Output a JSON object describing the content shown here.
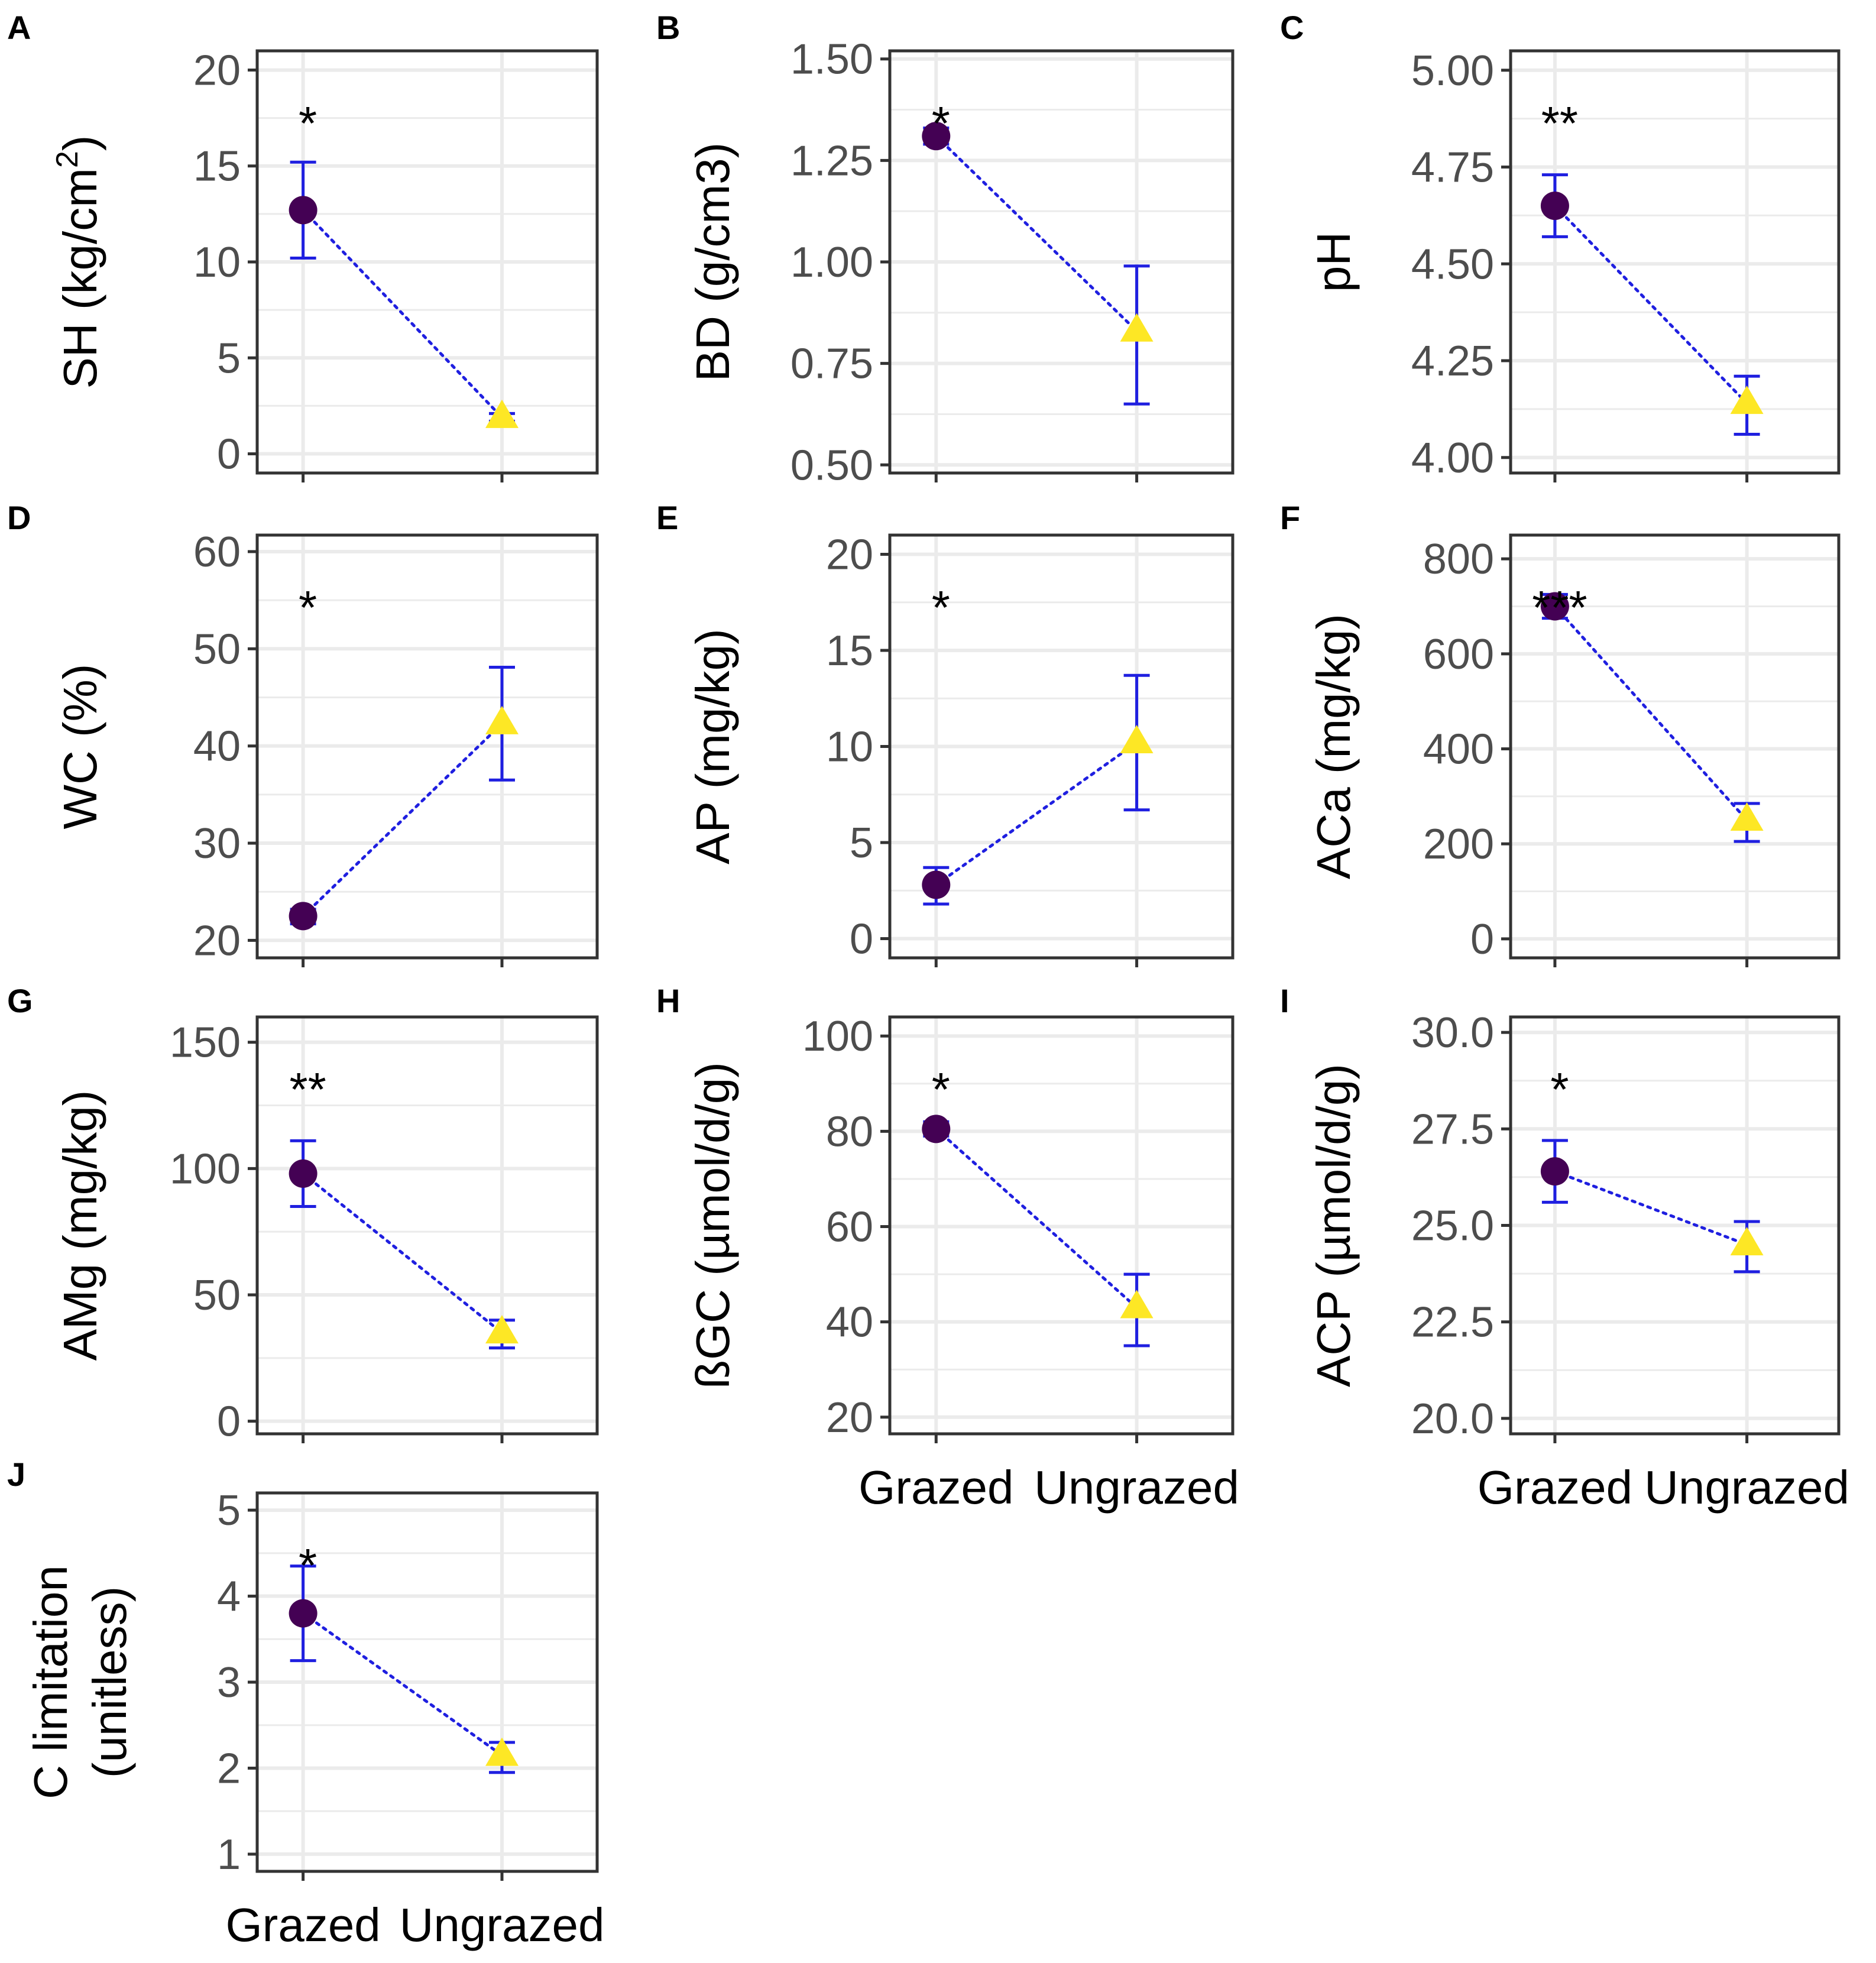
{
  "chart_data": [
    {
      "panel": "A",
      "type": "scatter",
      "ylabel": "SH (kg/cm²)",
      "ylabel_main": "SH (kg/cm",
      "ylabel_sup": "2",
      "ylabel_end": ")",
      "ylim": [
        -1,
        21
      ],
      "yticks": [
        "0",
        "5",
        "10",
        "15",
        "20"
      ],
      "ytick_values": [
        0,
        5,
        10,
        15,
        20
      ],
      "categories": [
        "Grazed",
        "Ungrazed"
      ],
      "means": [
        12.7,
        1.9
      ],
      "lower": [
        10.2,
        1.7
      ],
      "upper": [
        15.2,
        2.1
      ],
      "significance": "*",
      "show_xlabels": false
    },
    {
      "panel": "B",
      "type": "scatter",
      "ylabel": "BD (g/cm3)",
      "ylim": [
        0.48,
        1.52
      ],
      "yticks": [
        "0.50",
        "0.75",
        "1.00",
        "1.25",
        "1.50"
      ],
      "ytick_values": [
        0.5,
        0.75,
        1.0,
        1.25,
        1.5
      ],
      "categories": [
        "Grazed",
        "Ungrazed"
      ],
      "means": [
        1.31,
        0.83
      ],
      "lower": [
        1.29,
        0.65
      ],
      "upper": [
        1.33,
        0.99
      ],
      "significance": "*",
      "show_xlabels": false
    },
    {
      "panel": "C",
      "type": "scatter",
      "ylabel": "pH",
      "ylim": [
        3.96,
        5.05
      ],
      "yticks": [
        "4.00",
        "4.25",
        "4.50",
        "4.75",
        "5.00"
      ],
      "ytick_values": [
        4.0,
        4.25,
        4.5,
        4.75,
        5.0
      ],
      "categories": [
        "Grazed",
        "Ungrazed"
      ],
      "means": [
        4.65,
        4.14
      ],
      "lower": [
        4.57,
        4.06
      ],
      "upper": [
        4.73,
        4.21
      ],
      "significance": "**",
      "show_xlabels": false
    },
    {
      "panel": "D",
      "type": "scatter",
      "ylabel": "WC (%)",
      "ylim": [
        18.2,
        61.7
      ],
      "yticks": [
        "20",
        "30",
        "40",
        "50",
        "60"
      ],
      "ytick_values": [
        20,
        30,
        40,
        50,
        60
      ],
      "categories": [
        "Grazed",
        "Ungrazed"
      ],
      "means": [
        22.5,
        42.3
      ],
      "lower": [
        21.7,
        36.5
      ],
      "upper": [
        23.2,
        48.1
      ],
      "significance": "*",
      "show_xlabels": false
    },
    {
      "panel": "E",
      "type": "scatter",
      "ylabel": "AP (mg/kg)",
      "ylim": [
        -1,
        21
      ],
      "yticks": [
        "0",
        "5",
        "10",
        "15",
        "20"
      ],
      "ytick_values": [
        0,
        5,
        10,
        15,
        20
      ],
      "categories": [
        "Grazed",
        "Ungrazed"
      ],
      "means": [
        2.8,
        10.2
      ],
      "lower": [
        1.8,
        6.7
      ],
      "upper": [
        3.7,
        13.7
      ],
      "significance": "*",
      "show_xlabels": false
    },
    {
      "panel": "F",
      "type": "scatter",
      "ylabel": "ACa (mg/kg)",
      "ylim": [
        -40,
        850
      ],
      "yticks": [
        "0",
        "200",
        "400",
        "600",
        "800"
      ],
      "ytick_values": [
        0,
        200,
        400,
        600,
        800
      ],
      "categories": [
        "Grazed",
        "Ungrazed"
      ],
      "means": [
        700,
        250
      ],
      "lower": [
        675,
        205
      ],
      "upper": [
        725,
        285
      ],
      "significance": "***",
      "show_xlabels": false
    },
    {
      "panel": "G",
      "type": "scatter",
      "ylabel": "AMg (mg/kg)",
      "ylim": [
        -5,
        160
      ],
      "yticks": [
        "0",
        "50",
        "100",
        "150"
      ],
      "ytick_values": [
        0,
        50,
        100,
        150
      ],
      "categories": [
        "Grazed",
        "Ungrazed"
      ],
      "means": [
        98,
        35
      ],
      "lower": [
        85,
        29
      ],
      "upper": [
        111,
        40
      ],
      "significance": "**",
      "show_xlabels": false
    },
    {
      "panel": "H",
      "type": "scatter",
      "ylabel": "ßGC (µmol/d/g)",
      "ylim": [
        16.5,
        104
      ],
      "yticks": [
        "20",
        "40",
        "60",
        "80",
        "100"
      ],
      "ytick_values": [
        20,
        40,
        60,
        80,
        100
      ],
      "categories": [
        "Grazed",
        "Ungrazed"
      ],
      "means": [
        80.5,
        43
      ],
      "lower": [
        79,
        35
      ],
      "upper": [
        82,
        50
      ],
      "significance": "*",
      "show_xlabels": true
    },
    {
      "panel": "I",
      "type": "scatter",
      "ylabel": "ACP (µmol/d/g)",
      "ylim": [
        19.6,
        30.4
      ],
      "yticks": [
        "20.0",
        "22.5",
        "25.0",
        "27.5",
        "30.0"
      ],
      "ytick_values": [
        20.0,
        22.5,
        25.0,
        27.5,
        30.0
      ],
      "categories": [
        "Grazed",
        "Ungrazed"
      ],
      "means": [
        26.4,
        24.5
      ],
      "lower": [
        25.6,
        23.8
      ],
      "upper": [
        27.2,
        25.1
      ],
      "significance": "*",
      "show_xlabels": true
    },
    {
      "panel": "J",
      "type": "scatter",
      "ylabel_lines": [
        "C limitation",
        "(unitless)"
      ],
      "ylim": [
        0.8,
        5.2
      ],
      "yticks": [
        "1",
        "2",
        "3",
        "4",
        "5"
      ],
      "ytick_values": [
        1,
        2,
        3,
        4,
        5
      ],
      "categories": [
        "Grazed",
        "Ungrazed"
      ],
      "means": [
        3.8,
        2.15
      ],
      "lower": [
        3.25,
        1.95
      ],
      "upper": [
        4.35,
        2.3
      ],
      "significance": "*",
      "show_xlabels": true
    }
  ],
  "colors": {
    "grazed_point": "#440154",
    "ungrazed_point": "#fde725",
    "error_bar": "#1f1fe0",
    "connector": "#1f1fe0",
    "grid": "#ebebeb",
    "panel_border": "#333333",
    "tick_text": "#4d4d4d"
  }
}
